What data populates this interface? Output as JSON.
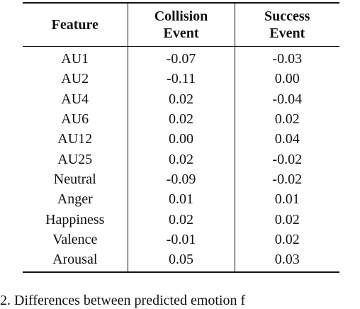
{
  "table": {
    "headers": [
      {
        "lines": [
          "Feature"
        ]
      },
      {
        "lines": [
          "Collision",
          "Event"
        ]
      },
      {
        "lines": [
          "Success",
          "Event"
        ]
      }
    ],
    "rows": [
      {
        "feature": "AU1",
        "collision": "-0.07",
        "success": "-0.03"
      },
      {
        "feature": "AU2",
        "collision": "-0.11",
        "success": "0.00"
      },
      {
        "feature": "AU4",
        "collision": "0.02",
        "success": "-0.04"
      },
      {
        "feature": "AU6",
        "collision": "0.02",
        "success": "0.02"
      },
      {
        "feature": "AU12",
        "collision": "0.00",
        "success": "0.04"
      },
      {
        "feature": "AU25",
        "collision": "0.02",
        "success": "-0.02"
      },
      {
        "feature": "Neutral",
        "collision": "-0.09",
        "success": "-0.02"
      },
      {
        "feature": "Anger",
        "collision": "0.01",
        "success": "0.01"
      },
      {
        "feature": "Happiness",
        "collision": "0.02",
        "success": "0.02"
      },
      {
        "feature": "Valence",
        "collision": "-0.01",
        "success": "0.02"
      },
      {
        "feature": "Arousal",
        "collision": "0.05",
        "success": "0.03"
      }
    ]
  },
  "caption": {
    "text": "2. Differences between predicted emotion f"
  }
}
